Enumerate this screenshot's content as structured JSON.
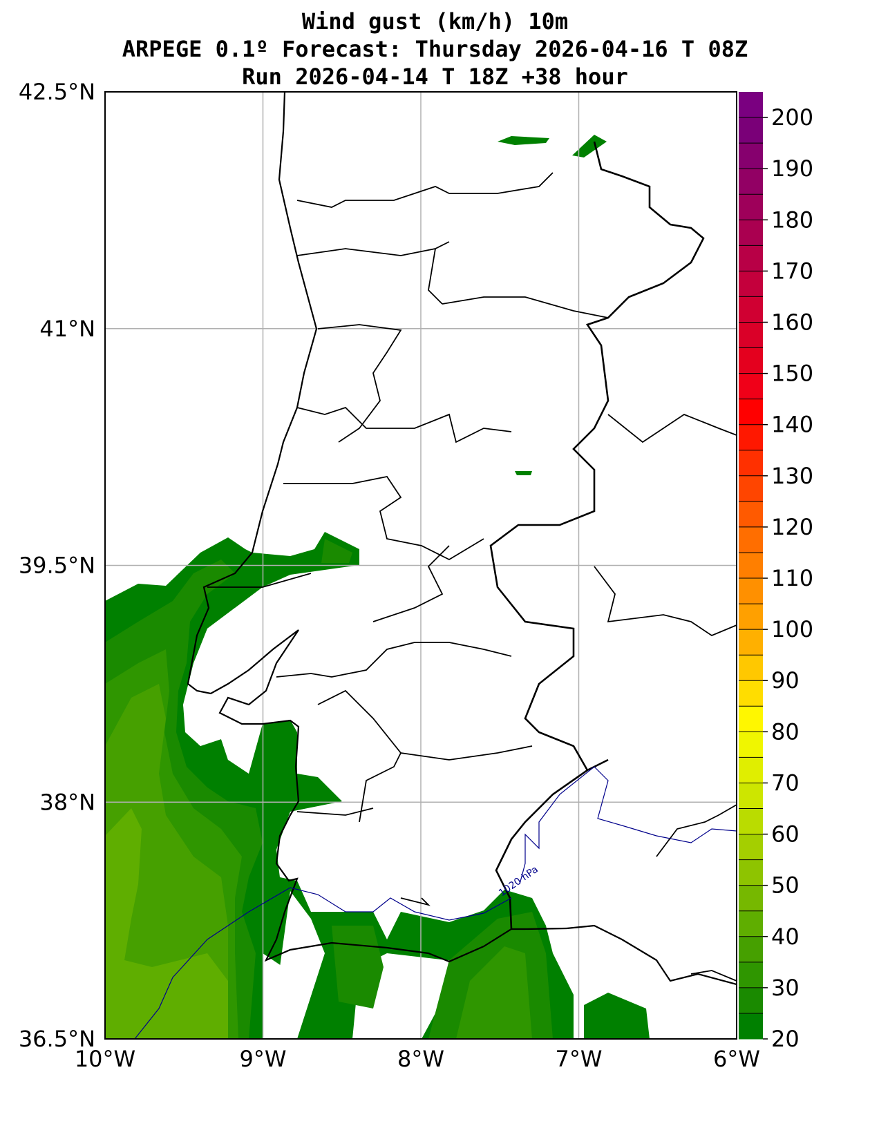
{
  "title": {
    "line1": "Wind gust (km/h) 10m",
    "line2": "ARPEGE 0.1º Forecast: Thursday 2026-04-16 T 08Z",
    "line3": "Run 2026-04-14 T 18Z +38 hour"
  },
  "map": {
    "lon_range": [
      -10,
      -6
    ],
    "lat_range": [
      36.5,
      42.5
    ],
    "lat_labels": [
      "42.5°N",
      "41°N",
      "39.5°N",
      "38°N",
      "36.5°N"
    ],
    "lat_values": [
      42.5,
      41,
      39.5,
      38,
      36.5
    ],
    "lon_labels": [
      "10°W",
      "9°W",
      "8°W",
      "7°W",
      "6°W"
    ],
    "lon_values": [
      -10,
      -9,
      -8,
      -7,
      -6
    ],
    "isobar_label": "1020 hPa",
    "isobar_color": "#00008b"
  },
  "colorbar": {
    "min": 20,
    "max": 205,
    "step": 5,
    "tick_labels": [
      "20",
      "30",
      "40",
      "50",
      "60",
      "70",
      "80",
      "90",
      "100",
      "110",
      "120",
      "130",
      "140",
      "150",
      "160",
      "170",
      "180",
      "190",
      "200"
    ],
    "colors": [
      "#008000",
      "#1a8a00",
      "#2f9600",
      "#46a000",
      "#5fae00",
      "#76b800",
      "#8ec400",
      "#a4cf00",
      "#badc00",
      "#cde600",
      "#e0ee00",
      "#f0f600",
      "#fff700",
      "#ffdd00",
      "#ffc800",
      "#ffb000",
      "#ffa000",
      "#ff9000",
      "#ff7f00",
      "#ff6e00",
      "#ff5a00",
      "#ff4500",
      "#ff3000",
      "#ff1800",
      "#ff0000",
      "#f00018",
      "#e4001e",
      "#da0028",
      "#d00032",
      "#c4003c",
      "#b80046",
      "#aa0050",
      "#9e005a",
      "#920064",
      "#86006e",
      "#7a0078",
      "#7a0080"
    ]
  }
}
